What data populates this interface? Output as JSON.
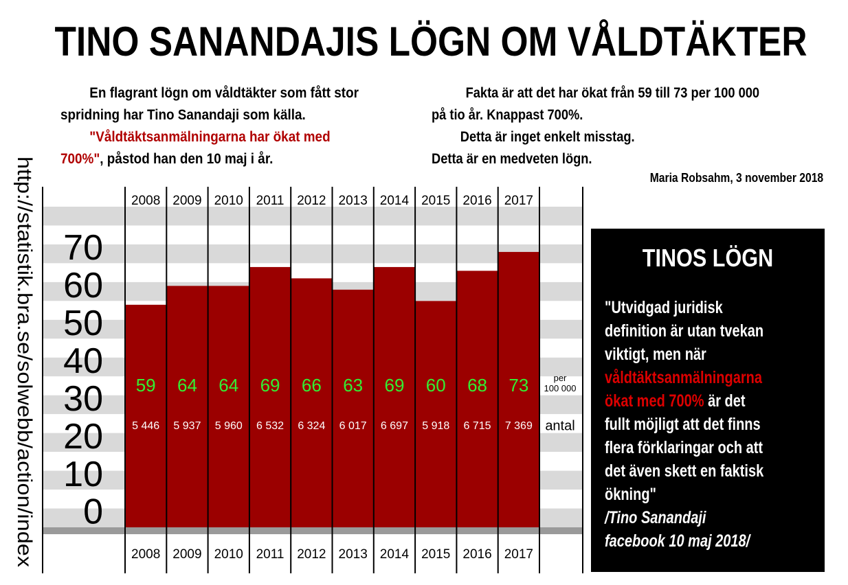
{
  "chart_data": {
    "type": "bar",
    "title": "TINO SANANDAJIS LÖGN OM VÅLDTÄKTER",
    "categories": [
      "2008",
      "2009",
      "2010",
      "2011",
      "2012",
      "2013",
      "2014",
      "2015",
      "2016",
      "2017"
    ],
    "series": [
      {
        "name": "per 100 000",
        "color": "#9b0000",
        "label_color": "#33ee33",
        "values": [
          59,
          64,
          64,
          69,
          66,
          63,
          69,
          60,
          68,
          73
        ]
      },
      {
        "name": "antal",
        "values": [
          5446,
          5937,
          5960,
          6532,
          6324,
          6017,
          6697,
          5918,
          6715,
          7369
        ],
        "value_labels": [
          "5 446",
          "5 937",
          "5 960",
          "6 532",
          "6 324",
          "6 017",
          "6 697",
          "5 918",
          "6 715",
          "7 369"
        ]
      }
    ],
    "ylim": [
      0,
      85
    ],
    "yticks": [
      0,
      10,
      20,
      30,
      40,
      50,
      60,
      70
    ],
    "grid": false
  },
  "intro_left": [
    [
      {
        "text": "En flagrant lögn om våldtäkter som fått stor"
      }
    ],
    [
      {
        "text": "spridning har Tino Sanandaji som källa."
      }
    ],
    [
      {
        "text": "\"Våldtäktsanmälningarna har ökat med",
        "emphasis": true
      }
    ],
    [
      {
        "text": "700%\"",
        "emphasis": true
      },
      {
        "text": ", påstod han den 10 maj i år."
      }
    ]
  ],
  "intro_right": [
    [
      {
        "text": "Fakta är att det har ökat från 59 till 73 per 100 000"
      }
    ],
    [
      {
        "text": "på tio år. Knappast 700%."
      }
    ],
    [
      {
        "text": "Detta är inget enkelt misstag."
      }
    ],
    [
      {
        "text": "Detta är en medveten lögn."
      }
    ]
  ],
  "signature": "Maria Robsahm, 3 november 2018",
  "source_url": "http://statistik.bra.se/solwebb/action/index",
  "box": {
    "title": "TINOS LÖGN",
    "lines": [
      [
        {
          "text": "\"Utvidgad juridisk"
        }
      ],
      [
        {
          "text": "definition är utan tvekan"
        }
      ],
      [
        {
          "text": "viktigt, men när"
        }
      ],
      [
        {
          "text": "våldtäktsanmälningarna",
          "emphasis": true
        }
      ],
      [
        {
          "text": "ökat med 700%",
          "emphasis": true
        },
        {
          "text": " är det"
        }
      ],
      [
        {
          "text": "fullt möjligt att det finns"
        }
      ],
      [
        {
          "text": "flera förklaringar och att"
        }
      ],
      [
        {
          "text": "det även skett en faktisk"
        }
      ],
      [
        {
          "text": "ökning\""
        }
      ],
      [
        {
          "text": "/Tino Sanandaji",
          "italic": true
        }
      ],
      [
        {
          "text": "facebook 10 maj 2018/",
          "italic": true
        }
      ]
    ]
  }
}
